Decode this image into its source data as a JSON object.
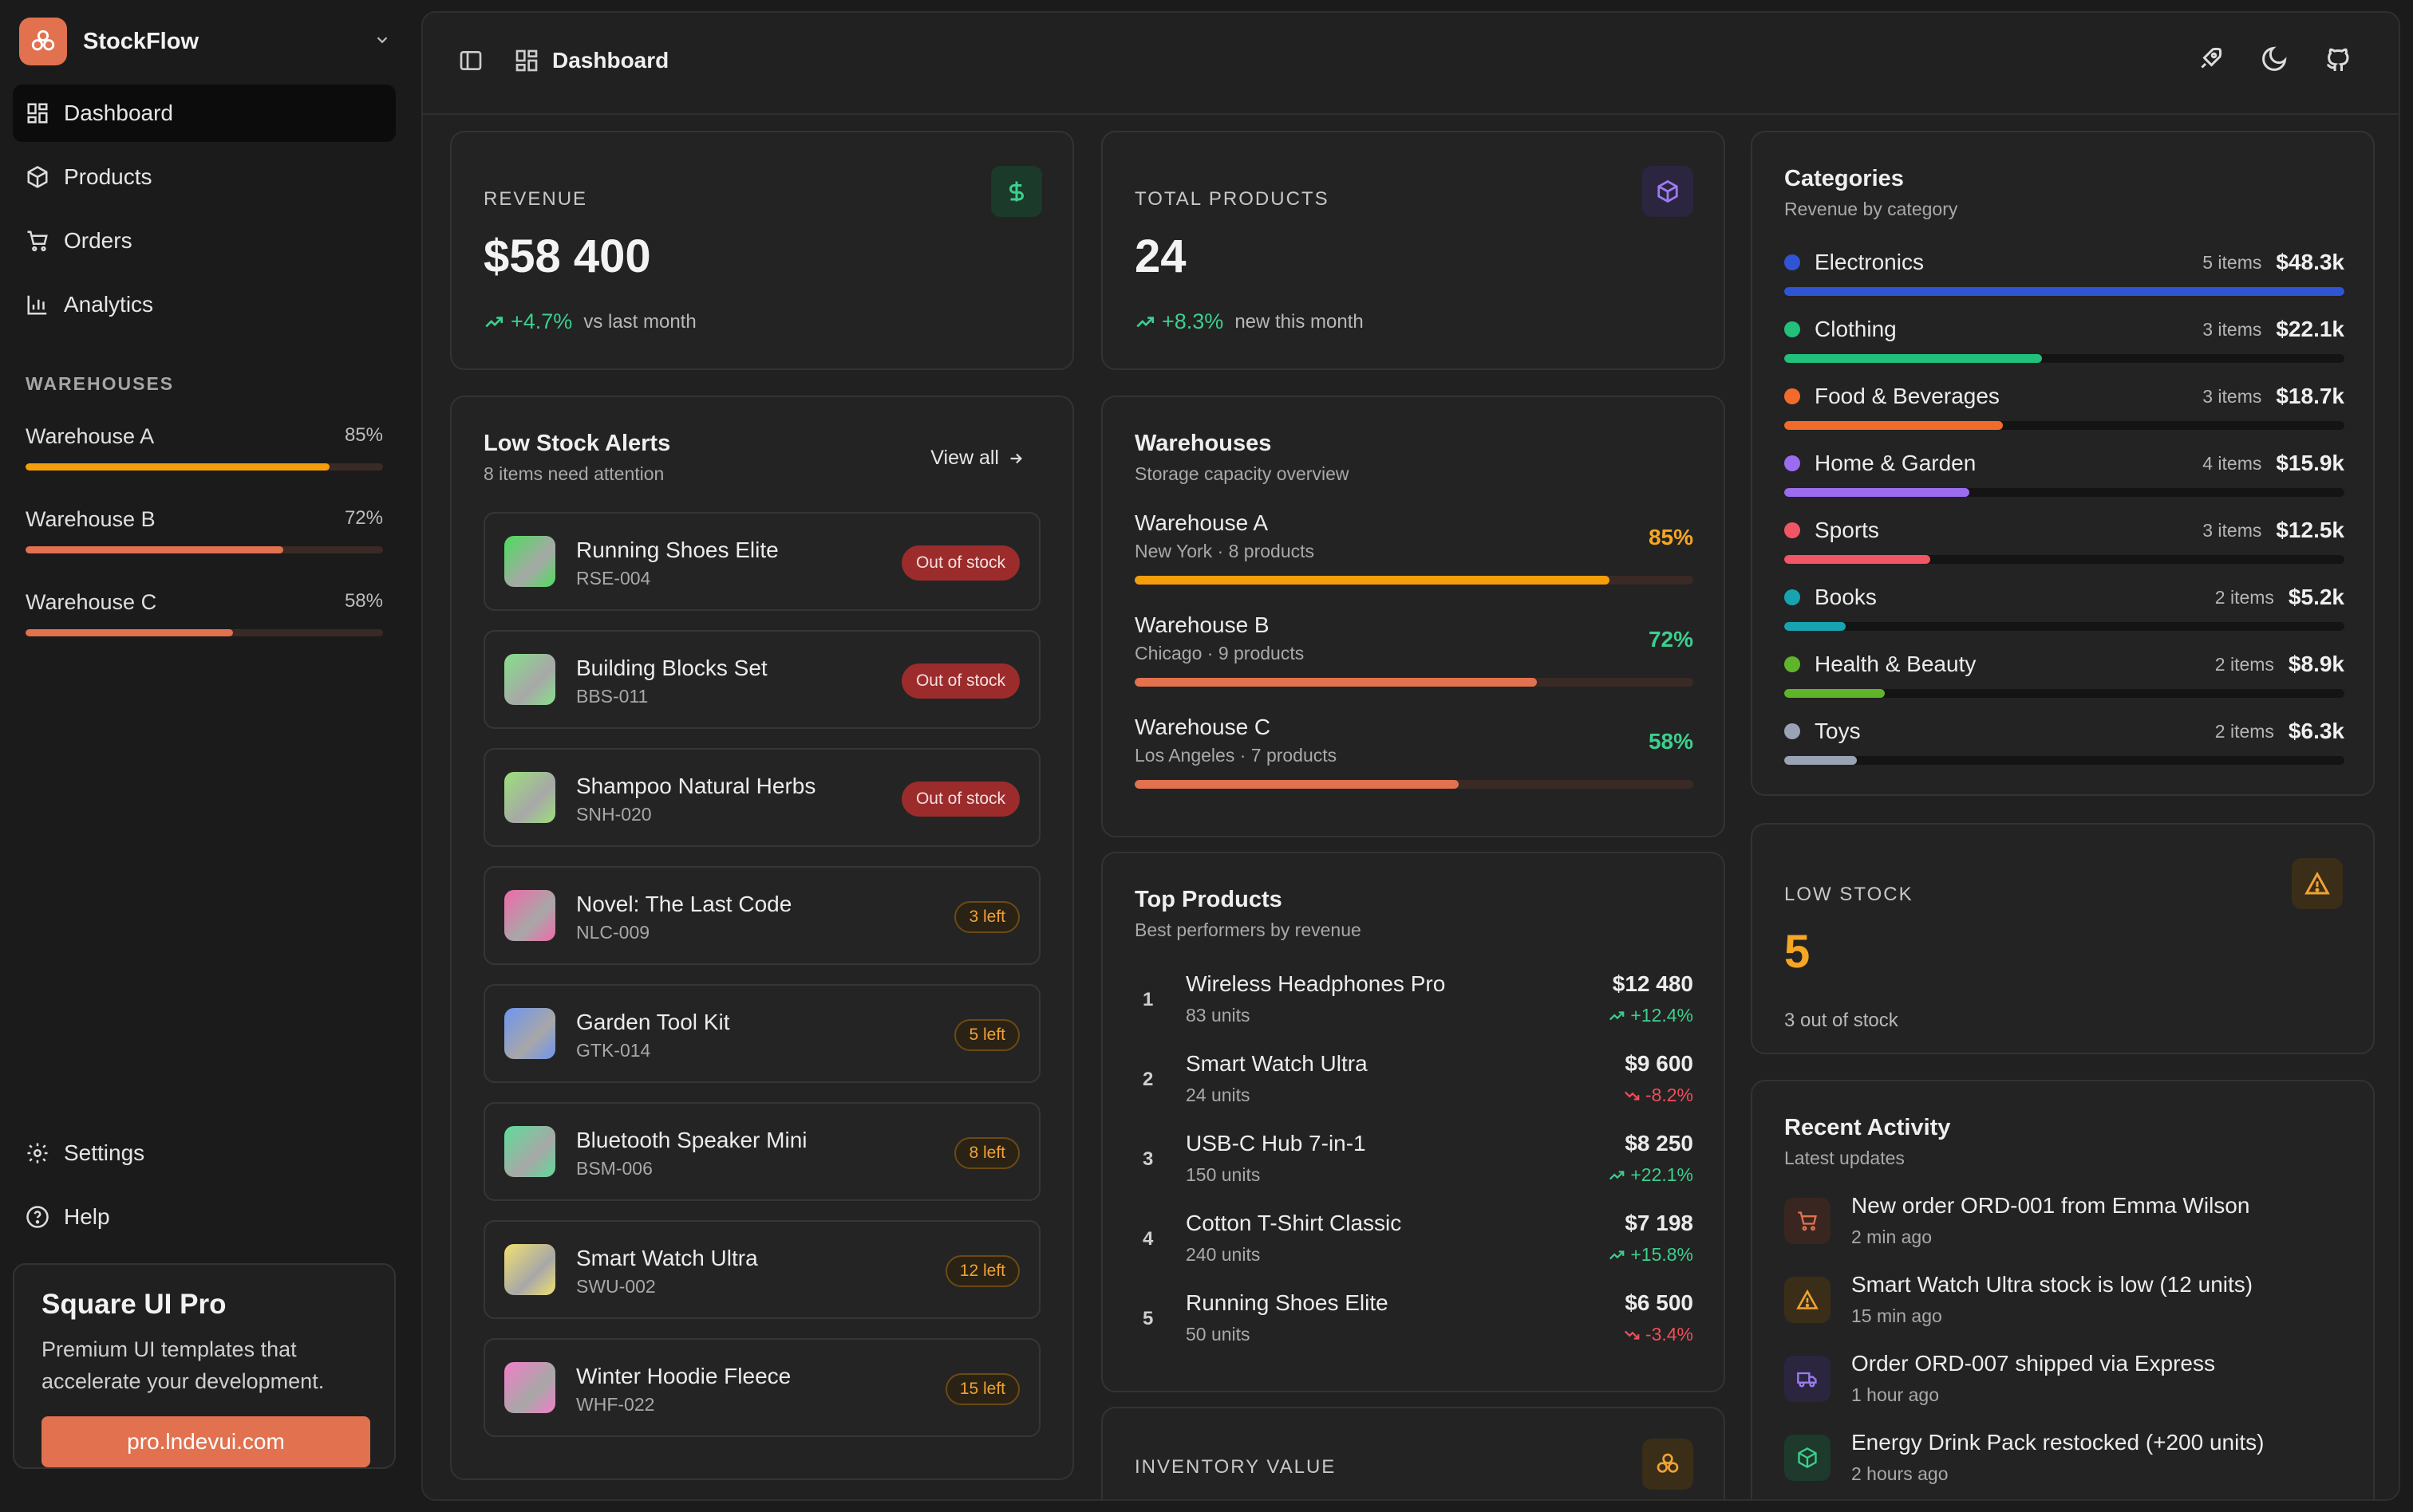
{
  "brand": {
    "name": "StockFlow",
    "accent": "#e2714f"
  },
  "nav": {
    "items": [
      {
        "label": "Dashboard",
        "icon": "dashboard-icon",
        "active": true
      },
      {
        "label": "Products",
        "icon": "box-icon"
      },
      {
        "label": "Orders",
        "icon": "cart-icon"
      },
      {
        "label": "Analytics",
        "icon": "bar-chart-icon"
      }
    ],
    "bottom": [
      {
        "label": "Settings",
        "icon": "gear-icon"
      },
      {
        "label": "Help",
        "icon": "help-icon"
      }
    ]
  },
  "sidebar_warehouses": {
    "title": "WAREHOUSES",
    "items": [
      {
        "name": "Warehouse A",
        "pct_label": "85%",
        "fill": 0.85,
        "color": "#f59e0b"
      },
      {
        "name": "Warehouse B",
        "pct_label": "72%",
        "fill": 0.72,
        "color": "#e2714f"
      },
      {
        "name": "Warehouse C",
        "pct_label": "58%",
        "fill": 0.58,
        "color": "#e2714f"
      }
    ]
  },
  "promo": {
    "title": "Square UI Pro",
    "text": "Premium UI templates that accelerate your development.",
    "button": "pro.lndevui.com"
  },
  "topbar": {
    "title": "Dashboard"
  },
  "revenue": {
    "label": "REVENUE",
    "value": "$58 400",
    "change": "+4.7%",
    "note": "vs last month"
  },
  "total_products": {
    "label": "TOTAL PRODUCTS",
    "value": "24",
    "change": "+8.3%",
    "note": "new this month"
  },
  "low_stock_alerts": {
    "title": "Low Stock Alerts",
    "subtitle": "8 items need attention",
    "view_all": "View all",
    "items": [
      {
        "name": "Running Shoes Elite",
        "sku": "RSE-004",
        "badge": "Out of stock",
        "type": "out",
        "thumb": "#4ade5a"
      },
      {
        "name": "Building Blocks Set",
        "sku": "BBS-011",
        "badge": "Out of stock",
        "type": "out",
        "thumb": "#86e08a"
      },
      {
        "name": "Shampoo Natural Herbs",
        "sku": "SNH-020",
        "badge": "Out of stock",
        "type": "out",
        "thumb": "#9be07a"
      },
      {
        "name": "Novel: The Last Code",
        "sku": "NLC-009",
        "badge": "3 left",
        "type": "left",
        "thumb": "#f06aa8"
      },
      {
        "name": "Garden Tool Kit",
        "sku": "GTK-014",
        "badge": "5 left",
        "type": "left",
        "thumb": "#6d95f0"
      },
      {
        "name": "Bluetooth Speaker Mini",
        "sku": "BSM-006",
        "badge": "8 left",
        "type": "left",
        "thumb": "#5ddc98"
      },
      {
        "name": "Smart Watch Ultra",
        "sku": "SWU-002",
        "badge": "12 left",
        "type": "left",
        "thumb": "#f0e070"
      },
      {
        "name": "Winter Hoodie Fleece",
        "sku": "WHF-022",
        "badge": "15 left",
        "type": "left",
        "thumb": "#f27ec8"
      }
    ]
  },
  "warehouses": {
    "title": "Warehouses",
    "subtitle": "Storage capacity overview",
    "items": [
      {
        "name": "Warehouse A",
        "location": "New York · 8 products",
        "pct_label": "85%",
        "fill": 0.85,
        "bar": "#f59e0b",
        "pct_color": "#f5a623"
      },
      {
        "name": "Warehouse B",
        "location": "Chicago · 9 products",
        "pct_label": "72%",
        "fill": 0.72,
        "bar": "#e2714f",
        "pct_color": "#3ccf8e"
      },
      {
        "name": "Warehouse C",
        "location": "Los Angeles · 7 products",
        "pct_label": "58%",
        "fill": 0.58,
        "bar": "#e2714f",
        "pct_color": "#3ccf8e"
      }
    ]
  },
  "top_products": {
    "title": "Top Products",
    "subtitle": "Best performers by revenue",
    "items": [
      {
        "rank": "1",
        "name": "Wireless Headphones Pro",
        "units": "83 units",
        "revenue": "$12 480",
        "change": "+12.4%",
        "up": true
      },
      {
        "rank": "2",
        "name": "Smart Watch Ultra",
        "units": "24 units",
        "revenue": "$9 600",
        "change": "-8.2%",
        "up": false
      },
      {
        "rank": "3",
        "name": "USB-C Hub 7-in-1",
        "units": "150 units",
        "revenue": "$8 250",
        "change": "+22.1%",
        "up": true
      },
      {
        "rank": "4",
        "name": "Cotton T-Shirt Classic",
        "units": "240 units",
        "revenue": "$7 198",
        "change": "+15.8%",
        "up": true
      },
      {
        "rank": "5",
        "name": "Running Shoes Elite",
        "units": "50 units",
        "revenue": "$6 500",
        "change": "-3.4%",
        "up": false
      }
    ]
  },
  "inventory_value": {
    "label": "INVENTORY VALUE"
  },
  "categories": {
    "title": "Categories",
    "subtitle": "Revenue by category",
    "items": [
      {
        "name": "Electronics",
        "items": "5 items",
        "value": "$48.3k",
        "fill": 1.0,
        "color": "#2f55d4"
      },
      {
        "name": "Clothing",
        "items": "3 items",
        "value": "$22.1k",
        "fill": 0.46,
        "color": "#22c07a"
      },
      {
        "name": "Food & Beverages",
        "items": "3 items",
        "value": "$18.7k",
        "fill": 0.39,
        "color": "#f26b2a"
      },
      {
        "name": "Home & Garden",
        "items": "4 items",
        "value": "$15.9k",
        "fill": 0.33,
        "color": "#9b6cf0"
      },
      {
        "name": "Sports",
        "items": "3 items",
        "value": "$12.5k",
        "fill": 0.26,
        "color": "#f25565"
      },
      {
        "name": "Books",
        "items": "2 items",
        "value": "$5.2k",
        "fill": 0.11,
        "color": "#17a4b0"
      },
      {
        "name": "Health & Beauty",
        "items": "2 items",
        "value": "$8.9k",
        "fill": 0.18,
        "color": "#5fb52a"
      },
      {
        "name": "Toys",
        "items": "2 items",
        "value": "$6.3k",
        "fill": 0.13,
        "color": "#9aa3b5"
      }
    ]
  },
  "low_stock": {
    "label": "LOW STOCK",
    "value": "5",
    "note": "3 out of stock"
  },
  "recent_activity": {
    "title": "Recent Activity",
    "subtitle": "Latest updates",
    "items": [
      {
        "text": "New order ORD-001 from Emma Wilson",
        "time": "2 min ago",
        "icon": "cart-icon",
        "color": "#e2714f",
        "bg": "#3a2620"
      },
      {
        "text": "Smart Watch Ultra stock is low (12 units)",
        "time": "15 min ago",
        "icon": "warning-icon",
        "color": "#f0a236",
        "bg": "#3a2e18"
      },
      {
        "text": "Order ORD-007 shipped via Express",
        "time": "1 hour ago",
        "icon": "truck-icon",
        "color": "#9b7cf0",
        "bg": "#2c2540"
      },
      {
        "text": "Energy Drink Pack restocked (+200 units)",
        "time": "2 hours ago",
        "icon": "package-icon",
        "color": "#3ccf8e",
        "bg": "#1d3a2c"
      }
    ]
  }
}
